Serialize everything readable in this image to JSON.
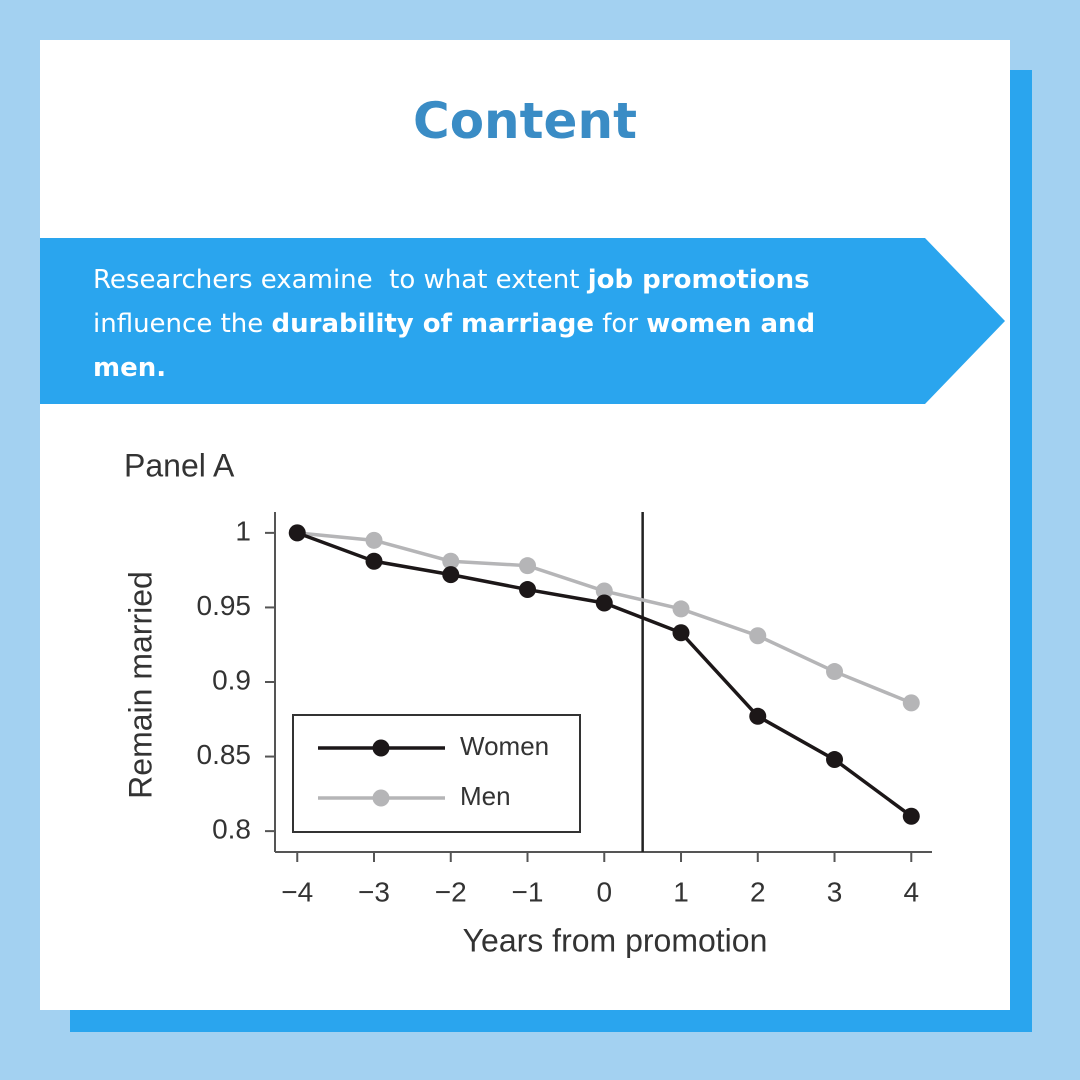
{
  "title": "Content",
  "banner": [
    {
      "text": "Researchers examine  to what extent ",
      "bold": false
    },
    {
      "text": "job promotions",
      "bold": true
    },
    {
      "text": " influence the ",
      "bold": false
    },
    {
      "text": "durability of marriage",
      "bold": true
    },
    {
      "text": " for ",
      "bold": false
    },
    {
      "text": "women and men.",
      "bold": true
    }
  ],
  "chart_data": {
    "type": "line",
    "title": "Panel A",
    "x_label": "Years from promotion",
    "y_label": "Remain married",
    "x": [
      -4,
      -3,
      -2,
      -1,
      0,
      1,
      2,
      3,
      4
    ],
    "series": [
      {
        "name": "Women",
        "color": "#1c1718",
        "values": [
          1,
          0.981,
          0.972,
          0.962,
          0.953,
          0.933,
          0.877,
          0.848,
          0.81
        ]
      },
      {
        "name": "Men",
        "color": "#b5b5b7",
        "values": [
          1,
          0.995,
          0.981,
          0.978,
          0.961,
          0.949,
          0.931,
          0.907,
          0.886
        ]
      }
    ],
    "xlim": [
      -4.29,
      4.27
    ],
    "ylim": [
      0.786,
      1.014
    ],
    "xticks": [
      {
        "value": -4,
        "label": "−4"
      },
      {
        "value": -3,
        "label": "−3"
      },
      {
        "value": -2,
        "label": "−2"
      },
      {
        "value": -1,
        "label": "−1"
      },
      0,
      1,
      2,
      3,
      4
    ],
    "yticks": [
      0.8,
      0.85,
      0.9,
      0.95,
      1
    ],
    "vline": 0.5,
    "legend": "lower left"
  }
}
